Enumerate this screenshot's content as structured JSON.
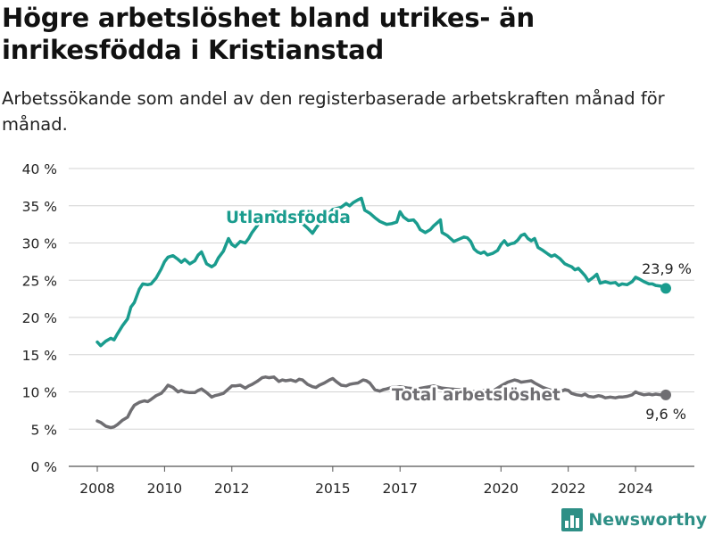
{
  "header": {
    "title": "Högre arbetslöshet bland utrikes- än inrikesfödda i Kristianstad",
    "subtitle": "Arbetssökande som andel av den registerbaserade arbetskraften månad för månad."
  },
  "brand": {
    "name": "Newsworthy",
    "icon": "bar-chart-logo-icon",
    "color": "#2e8f86"
  },
  "chart_data": {
    "type": "line",
    "title": "Högre arbetslöshet bland utrikes- än inrikesfödda i Kristianstad",
    "subtitle": "Arbetssökande som andel av den registerbaserade arbetskraften månad för månad.",
    "xlabel": "",
    "ylabel": "",
    "x_range": [
      2007.5,
      2026.0
    ],
    "ylim": [
      0,
      40
    ],
    "yticks": [
      0,
      5,
      10,
      15,
      20,
      25,
      30,
      35,
      40
    ],
    "ytick_labels": [
      "0 %",
      "5 %",
      "10 %",
      "15 %",
      "20 %",
      "25 %",
      "30 %",
      "35 %",
      "40 %"
    ],
    "xticks": [
      2008,
      2010,
      2012,
      2015,
      2017,
      2020,
      2022,
      2024
    ],
    "xtick_labels": [
      "2008",
      "2010",
      "2012",
      "2015",
      "2017",
      "2020",
      "2022",
      "2024"
    ],
    "grid": "horizontal",
    "legend": "none (direct line labels)",
    "series": [
      {
        "name": "Utlandsfödda",
        "color": "#1a9c8e",
        "end_label": "23,9 %",
        "points": [
          [
            2008.0,
            16.7
          ],
          [
            2008.1,
            16.2
          ],
          [
            2008.25,
            16.8
          ],
          [
            2008.4,
            17.2
          ],
          [
            2008.5,
            17.0
          ],
          [
            2008.6,
            17.8
          ],
          [
            2008.75,
            18.9
          ],
          [
            2008.9,
            19.8
          ],
          [
            2009.0,
            21.4
          ],
          [
            2009.1,
            22.0
          ],
          [
            2009.25,
            23.8
          ],
          [
            2009.35,
            24.5
          ],
          [
            2009.5,
            24.4
          ],
          [
            2009.6,
            24.5
          ],
          [
            2009.75,
            25.3
          ],
          [
            2009.9,
            26.5
          ],
          [
            2010.0,
            27.5
          ],
          [
            2010.1,
            28.1
          ],
          [
            2010.25,
            28.3
          ],
          [
            2010.4,
            27.8
          ],
          [
            2010.5,
            27.4
          ],
          [
            2010.6,
            27.8
          ],
          [
            2010.75,
            27.2
          ],
          [
            2010.9,
            27.6
          ],
          [
            2011.0,
            28.4
          ],
          [
            2011.1,
            28.8
          ],
          [
            2011.25,
            27.2
          ],
          [
            2011.4,
            26.8
          ],
          [
            2011.5,
            27.1
          ],
          [
            2011.6,
            28.0
          ],
          [
            2011.75,
            28.9
          ],
          [
            2011.9,
            30.6
          ],
          [
            2012.0,
            29.8
          ],
          [
            2012.1,
            29.5
          ],
          [
            2012.25,
            30.2
          ],
          [
            2012.4,
            30.0
          ],
          [
            2012.5,
            30.6
          ],
          [
            2012.6,
            31.4
          ],
          [
            2012.75,
            32.3
          ],
          [
            2012.9,
            33.4
          ],
          [
            2013.0,
            33.9
          ],
          [
            2013.25,
            34.2
          ],
          [
            2013.5,
            34.0
          ],
          [
            2013.75,
            33.2
          ],
          [
            2014.0,
            33.0
          ],
          [
            2014.25,
            32.0
          ],
          [
            2014.4,
            31.3
          ],
          [
            2014.5,
            32.0
          ],
          [
            2014.75,
            33.5
          ],
          [
            2014.9,
            34.0
          ],
          [
            2015.0,
            34.5
          ],
          [
            2015.25,
            34.8
          ],
          [
            2015.4,
            35.3
          ],
          [
            2015.5,
            35.0
          ],
          [
            2015.6,
            35.4
          ],
          [
            2015.75,
            35.8
          ],
          [
            2015.85,
            36.0
          ],
          [
            2015.95,
            34.4
          ],
          [
            2016.1,
            34.0
          ],
          [
            2016.25,
            33.4
          ],
          [
            2016.4,
            32.9
          ],
          [
            2016.5,
            32.7
          ],
          [
            2016.6,
            32.5
          ],
          [
            2016.75,
            32.6
          ],
          [
            2016.9,
            32.8
          ],
          [
            2017.0,
            34.2
          ],
          [
            2017.1,
            33.5
          ],
          [
            2017.25,
            33.0
          ],
          [
            2017.4,
            33.1
          ],
          [
            2017.5,
            32.6
          ],
          [
            2017.6,
            31.8
          ],
          [
            2017.75,
            31.4
          ],
          [
            2017.9,
            31.8
          ],
          [
            2018.0,
            32.3
          ],
          [
            2018.1,
            32.7
          ],
          [
            2018.2,
            33.1
          ],
          [
            2018.25,
            31.4
          ],
          [
            2018.4,
            31.0
          ],
          [
            2018.5,
            30.6
          ],
          [
            2018.6,
            30.2
          ],
          [
            2018.75,
            30.5
          ],
          [
            2018.9,
            30.8
          ],
          [
            2019.0,
            30.7
          ],
          [
            2019.1,
            30.2
          ],
          [
            2019.2,
            29.2
          ],
          [
            2019.3,
            28.8
          ],
          [
            2019.4,
            28.6
          ],
          [
            2019.5,
            28.8
          ],
          [
            2019.6,
            28.4
          ],
          [
            2019.75,
            28.6
          ],
          [
            2019.9,
            29.0
          ],
          [
            2020.0,
            29.8
          ],
          [
            2020.1,
            30.3
          ],
          [
            2020.2,
            29.7
          ],
          [
            2020.3,
            29.9
          ],
          [
            2020.4,
            30.0
          ],
          [
            2020.5,
            30.4
          ],
          [
            2020.6,
            31.0
          ],
          [
            2020.7,
            31.2
          ],
          [
            2020.8,
            30.6
          ],
          [
            2020.9,
            30.3
          ],
          [
            2021.0,
            30.6
          ],
          [
            2021.1,
            29.4
          ],
          [
            2021.25,
            29.0
          ],
          [
            2021.4,
            28.5
          ],
          [
            2021.5,
            28.2
          ],
          [
            2021.6,
            28.4
          ],
          [
            2021.75,
            27.9
          ],
          [
            2021.9,
            27.2
          ],
          [
            2022.0,
            27.0
          ],
          [
            2022.1,
            26.8
          ],
          [
            2022.2,
            26.4
          ],
          [
            2022.3,
            26.6
          ],
          [
            2022.4,
            26.1
          ],
          [
            2022.5,
            25.6
          ],
          [
            2022.6,
            24.9
          ],
          [
            2022.75,
            25.4
          ],
          [
            2022.85,
            25.8
          ],
          [
            2022.95,
            24.6
          ],
          [
            2023.1,
            24.8
          ],
          [
            2023.25,
            24.6
          ],
          [
            2023.4,
            24.7
          ],
          [
            2023.5,
            24.3
          ],
          [
            2023.6,
            24.5
          ],
          [
            2023.75,
            24.4
          ],
          [
            2023.9,
            24.8
          ],
          [
            2024.0,
            25.4
          ],
          [
            2024.1,
            25.2
          ],
          [
            2024.25,
            24.8
          ],
          [
            2024.4,
            24.5
          ],
          [
            2024.5,
            24.5
          ],
          [
            2024.6,
            24.3
          ],
          [
            2024.75,
            24.2
          ],
          [
            2024.9,
            23.9
          ]
        ]
      },
      {
        "name": "Total arbetslöshet",
        "color": "#6f6e72",
        "end_label": "9,6 %",
        "points": [
          [
            2008.0,
            6.1
          ],
          [
            2008.1,
            5.9
          ],
          [
            2008.25,
            5.4
          ],
          [
            2008.4,
            5.2
          ],
          [
            2008.5,
            5.3
          ],
          [
            2008.6,
            5.6
          ],
          [
            2008.75,
            6.2
          ],
          [
            2008.9,
            6.6
          ],
          [
            2009.0,
            7.5
          ],
          [
            2009.1,
            8.2
          ],
          [
            2009.25,
            8.6
          ],
          [
            2009.4,
            8.8
          ],
          [
            2009.5,
            8.7
          ],
          [
            2009.6,
            9.0
          ],
          [
            2009.75,
            9.5
          ],
          [
            2009.9,
            9.8
          ],
          [
            2010.0,
            10.3
          ],
          [
            2010.1,
            10.9
          ],
          [
            2010.25,
            10.6
          ],
          [
            2010.4,
            10.0
          ],
          [
            2010.5,
            10.2
          ],
          [
            2010.6,
            10.0
          ],
          [
            2010.75,
            9.9
          ],
          [
            2010.9,
            9.9
          ],
          [
            2011.0,
            10.2
          ],
          [
            2011.1,
            10.4
          ],
          [
            2011.25,
            9.9
          ],
          [
            2011.4,
            9.3
          ],
          [
            2011.5,
            9.5
          ],
          [
            2011.6,
            9.6
          ],
          [
            2011.75,
            9.8
          ],
          [
            2011.9,
            10.4
          ],
          [
            2012.0,
            10.8
          ],
          [
            2012.1,
            10.8
          ],
          [
            2012.25,
            10.9
          ],
          [
            2012.4,
            10.5
          ],
          [
            2012.5,
            10.8
          ],
          [
            2012.6,
            11.0
          ],
          [
            2012.75,
            11.4
          ],
          [
            2012.9,
            11.9
          ],
          [
            2013.0,
            12.0
          ],
          [
            2013.1,
            11.9
          ],
          [
            2013.25,
            12.0
          ],
          [
            2013.4,
            11.4
          ],
          [
            2013.5,
            11.6
          ],
          [
            2013.6,
            11.5
          ],
          [
            2013.75,
            11.6
          ],
          [
            2013.9,
            11.4
          ],
          [
            2014.0,
            11.7
          ],
          [
            2014.1,
            11.6
          ],
          [
            2014.25,
            11.0
          ],
          [
            2014.4,
            10.7
          ],
          [
            2014.5,
            10.6
          ],
          [
            2014.6,
            10.9
          ],
          [
            2014.75,
            11.2
          ],
          [
            2014.9,
            11.6
          ],
          [
            2015.0,
            11.8
          ],
          [
            2015.1,
            11.4
          ],
          [
            2015.25,
            10.9
          ],
          [
            2015.4,
            10.8
          ],
          [
            2015.5,
            11.0
          ],
          [
            2015.6,
            11.1
          ],
          [
            2015.75,
            11.2
          ],
          [
            2015.9,
            11.6
          ],
          [
            2016.0,
            11.5
          ],
          [
            2016.1,
            11.2
          ],
          [
            2016.25,
            10.3
          ],
          [
            2016.4,
            10.1
          ],
          [
            2016.5,
            10.3
          ],
          [
            2016.6,
            10.4
          ],
          [
            2016.75,
            10.6
          ],
          [
            2016.9,
            10.6
          ],
          [
            2017.0,
            10.7
          ],
          [
            2017.25,
            10.5
          ],
          [
            2017.5,
            10.4
          ],
          [
            2017.75,
            10.6
          ],
          [
            2018.0,
            10.8
          ],
          [
            2018.25,
            10.5
          ],
          [
            2018.5,
            10.4
          ],
          [
            2018.75,
            10.3
          ],
          [
            2019.0,
            10.2
          ],
          [
            2019.25,
            10.0
          ],
          [
            2019.5,
            10.2
          ],
          [
            2019.75,
            10.1
          ],
          [
            2020.0,
            10.8
          ],
          [
            2020.2,
            11.3
          ],
          [
            2020.4,
            11.6
          ],
          [
            2020.5,
            11.5
          ],
          [
            2020.6,
            11.3
          ],
          [
            2020.75,
            11.4
          ],
          [
            2020.9,
            11.5
          ],
          [
            2021.0,
            11.2
          ],
          [
            2021.25,
            10.6
          ],
          [
            2021.5,
            10.2
          ],
          [
            2021.75,
            10.0
          ],
          [
            2021.9,
            10.3
          ],
          [
            2022.0,
            10.2
          ],
          [
            2022.1,
            9.8
          ],
          [
            2022.25,
            9.6
          ],
          [
            2022.4,
            9.5
          ],
          [
            2022.5,
            9.7
          ],
          [
            2022.6,
            9.4
          ],
          [
            2022.75,
            9.3
          ],
          [
            2022.9,
            9.5
          ],
          [
            2023.0,
            9.4
          ],
          [
            2023.1,
            9.2
          ],
          [
            2023.25,
            9.3
          ],
          [
            2023.4,
            9.2
          ],
          [
            2023.5,
            9.3
          ],
          [
            2023.6,
            9.3
          ],
          [
            2023.75,
            9.4
          ],
          [
            2023.9,
            9.6
          ],
          [
            2024.0,
            10.0
          ],
          [
            2024.1,
            9.8
          ],
          [
            2024.25,
            9.6
          ],
          [
            2024.4,
            9.7
          ],
          [
            2024.5,
            9.6
          ],
          [
            2024.6,
            9.7
          ],
          [
            2024.75,
            9.6
          ],
          [
            2024.9,
            9.6
          ]
        ]
      }
    ]
  }
}
